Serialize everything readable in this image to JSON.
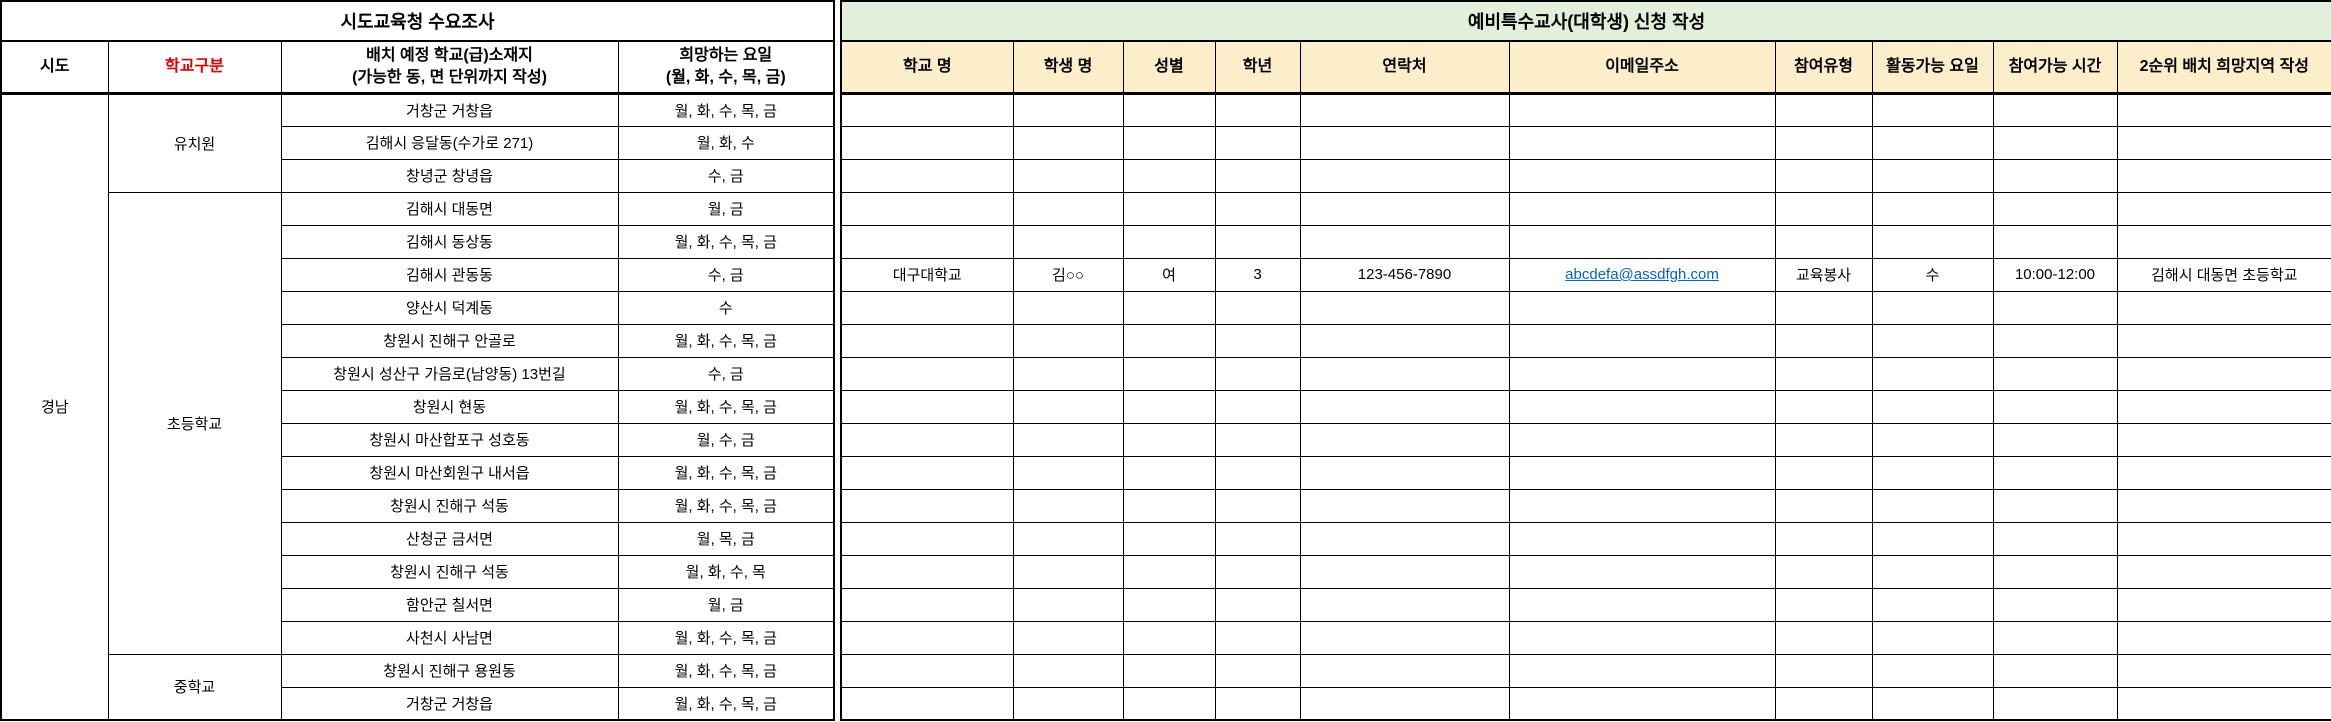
{
  "colors": {
    "table_border": "#000000",
    "red_header": "#e00000",
    "right_title_bg": "#e2efda",
    "right_header_bg": "#fdeecb",
    "link_blue": "#0563c1"
  },
  "left_table": {
    "title": "시도교육청 수요조사",
    "headers": {
      "sido": "시도",
      "school_type": "학교구분",
      "location_line1": "배치 예정 학교(급)소재지",
      "location_line2": "(가능한 동, 면 단위까지 작성)",
      "days_line1": "희망하는 요일",
      "days_line2": "(월, 화, 수, 목, 금)"
    },
    "sido_value": "경남",
    "groups": [
      {
        "label": "유치원",
        "rows": [
          {
            "location": "거창군 거창읍",
            "days": "월, 화, 수, 목, 금"
          },
          {
            "location": "김해시 응달동(수가로 271)",
            "days": "월, 화, 수"
          },
          {
            "location": "창녕군 창녕읍",
            "days": "수, 금"
          }
        ]
      },
      {
        "label": "초등학교",
        "rows": [
          {
            "location": "김해시 대동면",
            "days": "월, 금"
          },
          {
            "location": "김해시 동상동",
            "days": "월, 화, 수, 목, 금"
          },
          {
            "location": "김해시 관동동",
            "days": "수, 금"
          },
          {
            "location": "양산시 덕계동",
            "days": "수"
          },
          {
            "location": "창원시 진해구 안골로",
            "days": "월, 화, 수, 목, 금"
          },
          {
            "location": "창원시 성산구 가음로(남양동) 13번길",
            "days": "수, 금"
          },
          {
            "location": "창원시 현동",
            "days": "월, 화, 수, 목, 금"
          },
          {
            "location": "창원시 마산합포구 성호동",
            "days": "월, 수, 금"
          },
          {
            "location": "창원시 마산회원구 내서읍",
            "days": "월, 화, 수, 목, 금"
          },
          {
            "location": "창원시 진해구 석동",
            "days": "월, 화, 수, 목, 금"
          },
          {
            "location": "산청군 금서면",
            "days": "월, 목, 금"
          },
          {
            "location": "창원시 진해구 석동",
            "days": "월, 화, 수, 목"
          },
          {
            "location": "함안군 칠서면",
            "days": "월, 금"
          },
          {
            "location": "사천시 사남면",
            "days": "월, 화, 수, 목, 금"
          }
        ]
      },
      {
        "label": "중학교",
        "rows": [
          {
            "location": "창원시 진해구 용원동",
            "days": "월, 화, 수, 목, 금"
          },
          {
            "location": "거창군 거창읍",
            "days": "월, 화, 수, 목, 금"
          }
        ]
      }
    ]
  },
  "right_table": {
    "title": "예비특수교사(대학생) 신청 작성",
    "columns": [
      "학교 명",
      "학생 명",
      "성별",
      "학년",
      "연락처",
      "이메일주소",
      "참여유형",
      "활동가능 요일",
      "참여가능 시간",
      "2순위 배치 희망지역 작성"
    ],
    "row_count": 19,
    "filled_row_index": 5,
    "filled_row": {
      "school": "대구대학교",
      "student": "김○○",
      "gender": "여",
      "grade": "3",
      "phone": "123-456-7890",
      "email": "abcdefa@assdfgh.com",
      "participation_type": "교육봉사",
      "available_day": "수",
      "available_time": "10:00-12:00",
      "second_choice_region": "김해시 대동면 초등학교"
    }
  }
}
